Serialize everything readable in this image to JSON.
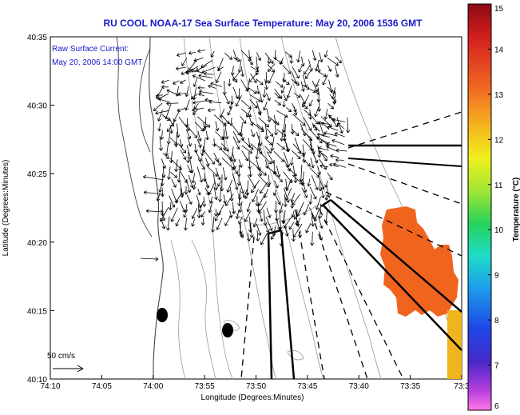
{
  "chart_data": {
    "type": "scatter",
    "title": "RU COOL  NOAA-17  Sea Surface Temperature:  May 20, 2006 1536 GMT",
    "annotation_lines": [
      "Raw Surface Current:",
      "May 20, 2006 14:00 GMT"
    ],
    "xlabel": "Longitude (Degrees:Minutes)",
    "ylabel": "Latitude (Degrees:Minutes)",
    "x_ticks": [
      "74:10",
      "74:05",
      "74:00",
      "73:55",
      "73:50",
      "73:45",
      "73:40",
      "73:35",
      "73:3"
    ],
    "y_ticks": [
      "40:35",
      "40:30",
      "40:25",
      "40:20",
      "40:15",
      "40:10"
    ],
    "scale_label": "50 cm/s",
    "colorbar": {
      "label": "Temperature (°C)",
      "min": 6,
      "max": 15,
      "ticks": [
        "15",
        "14",
        "13",
        "12",
        "11",
        "10",
        "9",
        "8",
        "7",
        "6"
      ]
    },
    "sst_patch": {
      "approx_temperature_c": 12.5,
      "color": "#f0641e",
      "secondary_color": "#f0b41e"
    },
    "colors": {
      "title": "#1a1ac8",
      "annotation": "#1a1ac8",
      "land_outline": "#444444",
      "arrow": "#000000"
    }
  }
}
